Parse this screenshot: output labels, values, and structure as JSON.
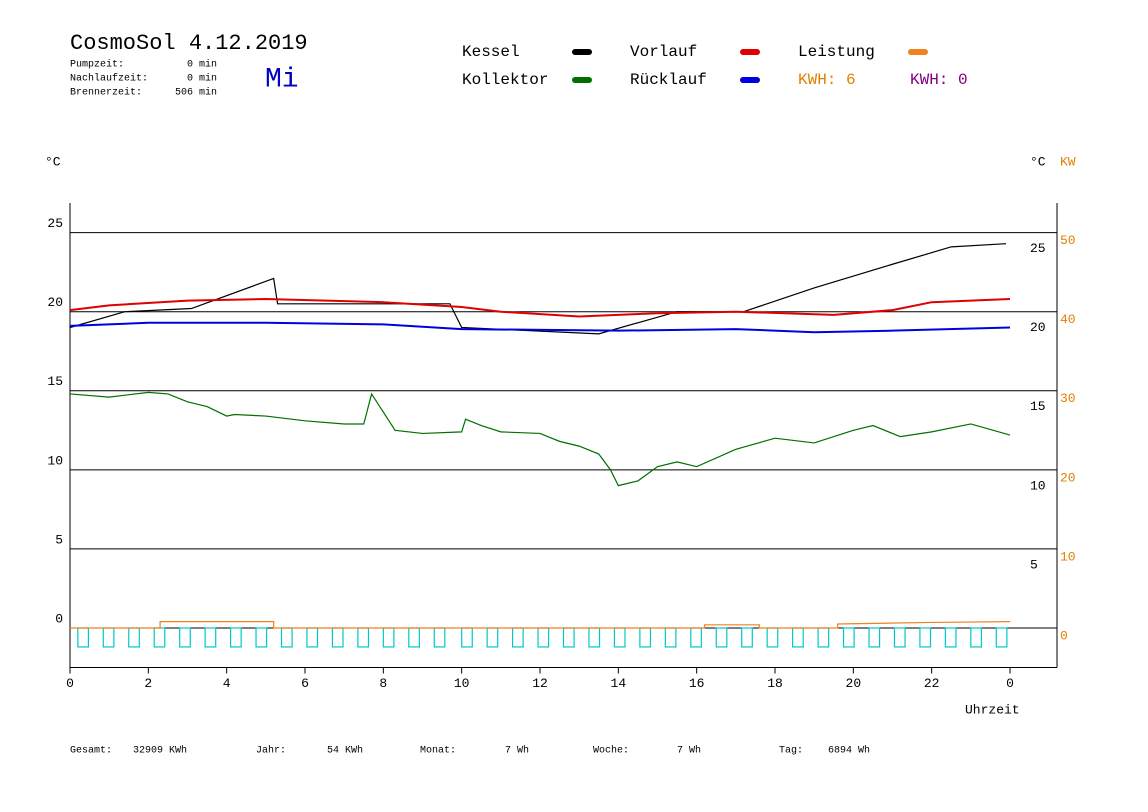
{
  "chart_data": {
    "type": "line",
    "title": "CosmoSol 4.12.2019",
    "weekday": "Mi",
    "info": [
      {
        "label": "Pumpzeit:",
        "value": "0 min"
      },
      {
        "label": "Nachlaufzeit:",
        "value": "0 min"
      },
      {
        "label": "Brennerzeit:",
        "value": "506 min"
      }
    ],
    "y_unit": "°C",
    "y_unit_right": "°C",
    "y2_unit": "KW",
    "x_label": "Uhrzeit",
    "xlim": [
      0,
      25.2
    ],
    "xticks": [
      0,
      2,
      4,
      6,
      8,
      10,
      12,
      14,
      16,
      18,
      20,
      22,
      {
        "value": 24,
        "label": "0"
      }
    ],
    "ylim": [
      -2.5,
      27
    ],
    "yticks": [
      0,
      5,
      10,
      15,
      20,
      25
    ],
    "yticks_right": [
      5,
      10,
      15,
      20,
      25
    ],
    "y2lim": [
      -5,
      54
    ],
    "y2ticks": [
      0,
      10,
      20,
      30,
      40,
      50
    ],
    "y2color": "#e08000",
    "grid": true,
    "series": [
      {
        "name": "Kessel",
        "color": "#000000",
        "x": [
          0,
          1.4,
          3.1,
          5.2,
          5.3,
          9.7,
          10,
          13.5,
          15.5,
          17.2,
          19,
          21,
          22.5,
          23.9
        ],
        "values": [
          19.0,
          20.0,
          20.2,
          22.1,
          20.5,
          20.5,
          19.0,
          18.6,
          20.0,
          20.0,
          21.5,
          23.0,
          24.1,
          24.3
        ]
      },
      {
        "name": "Vorlauf",
        "color": "#e00000",
        "x": [
          0,
          1,
          3,
          5,
          8,
          10,
          11,
          13,
          15,
          17,
          19.5,
          21,
          22,
          24
        ],
        "values": [
          20.1,
          20.4,
          20.7,
          20.8,
          20.6,
          20.3,
          20.0,
          19.7,
          19.9,
          20.0,
          19.8,
          20.1,
          20.6,
          20.8
        ]
      },
      {
        "name": "Leistung",
        "color": "#f08020",
        "axis": "y2",
        "x": [
          0,
          2.3,
          2.3,
          5.2,
          5.2,
          16.2,
          16.2,
          17.6,
          17.6,
          19.6,
          19.6,
          22,
          24
        ],
        "values": [
          0,
          0,
          0.8,
          0.8,
          0,
          0,
          0.4,
          0.4,
          0,
          0,
          0.5,
          0.7,
          0.8
        ]
      },
      {
        "name": "Kollektor",
        "color": "#007000",
        "x": [
          0,
          1,
          2,
          2.5,
          3,
          3.5,
          4,
          4.2,
          5,
          6,
          7,
          7.5,
          7.7,
          8.3,
          9,
          10,
          10.1,
          10.5,
          11,
          12,
          12.5,
          13,
          13.5,
          13.8,
          14,
          14.5,
          15,
          15.5,
          16,
          17,
          18,
          19,
          20,
          20.5,
          21.2,
          22,
          23,
          24
        ],
        "values": [
          14.8,
          14.6,
          14.9,
          14.8,
          14.3,
          14.0,
          13.4,
          13.5,
          13.4,
          13.1,
          12.9,
          12.9,
          14.8,
          12.5,
          12.3,
          12.4,
          13.2,
          12.8,
          12.4,
          12.3,
          11.8,
          11.5,
          11.0,
          10.0,
          9.0,
          9.3,
          10.2,
          10.5,
          10.2,
          11.3,
          12.0,
          11.7,
          12.5,
          12.8,
          12.1,
          12.4,
          12.9,
          12.2
        ]
      },
      {
        "name": "Rücklauf",
        "color": "#0000e0",
        "x": [
          0,
          2,
          5,
          8,
          10,
          14,
          17,
          19,
          21,
          24
        ],
        "values": [
          19.1,
          19.3,
          19.3,
          19.2,
          18.9,
          18.8,
          18.9,
          18.7,
          18.8,
          19.0
        ]
      }
    ],
    "kwh": [
      {
        "label": "KWH: 6",
        "color": "#e08000"
      },
      {
        "label": "KWH: 0",
        "color": "#800080"
      }
    ],
    "pulses": {
      "color": "#00c8c8",
      "width": 0.27,
      "low": -1.2,
      "starts": [
        0.2,
        0.85,
        1.5,
        2.15,
        2.8,
        3.45,
        4.1,
        4.75,
        5.4,
        6.05,
        6.7,
        7.35,
        8.0,
        8.65,
        9.3,
        10.0,
        10.65,
        11.3,
        11.95,
        12.6,
        13.25,
        13.9,
        14.55,
        15.2,
        15.85,
        16.5,
        17.15,
        17.8,
        18.45,
        19.1,
        19.75,
        20.4,
        21.05,
        21.7,
        22.35,
        23.0,
        23.65
      ]
    },
    "footer": [
      {
        "label": "Gesamt:",
        "value": "32909 KWh"
      },
      {
        "label": "Jahr:",
        "value": "54 KWh"
      },
      {
        "label": "Monat:",
        "value": "7 Wh"
      },
      {
        "label": "Woche:",
        "value": "7 Wh"
      },
      {
        "label": "Tag:",
        "value": "6894 Wh"
      }
    ]
  }
}
